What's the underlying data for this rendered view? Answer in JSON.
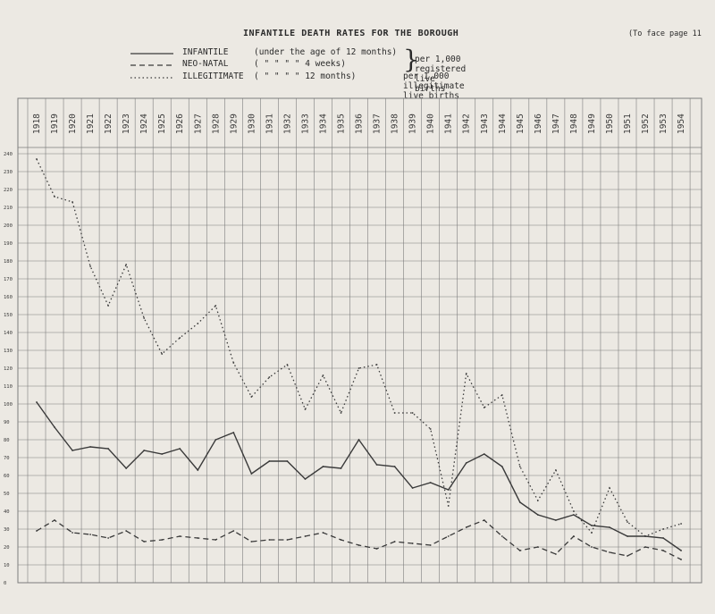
{
  "header": {
    "title": "INFANTILE DEATH RATES FOR THE BOROUGH",
    "face_page": "(To face page 11"
  },
  "legend": [
    {
      "name": "INFANTILE",
      "qualifier": "(under the age of 12 months)",
      "style": "solid"
    },
    {
      "name": "NEO-NATAL",
      "qualifier": "(   \"     \"   \"  \"   4 weeks)",
      "style": "dashed"
    },
    {
      "name": "ILLEGITIMATE",
      "qualifier": "(   \"     \"   \"  \"  12 months)",
      "style": "dotted"
    }
  ],
  "legend_notes": {
    "brace_text": "per 1,000 registered live births",
    "illegitimate_text": "per 1,000 illegitimate live births"
  },
  "colors": {
    "background": "#ece9e3",
    "grid": "#7d7d7d",
    "ink": "#3a3a3a"
  },
  "chart_data": {
    "type": "line",
    "title": "INFANTILE DEATH RATES FOR THE BOROUGH",
    "xlabel": "",
    "ylabel": "",
    "x": [
      1918,
      1919,
      1920,
      1921,
      1922,
      1923,
      1924,
      1925,
      1926,
      1927,
      1928,
      1929,
      1930,
      1931,
      1932,
      1933,
      1934,
      1935,
      1936,
      1937,
      1938,
      1939,
      1940,
      1941,
      1942,
      1943,
      1944,
      1945,
      1946,
      1947,
      1948,
      1949,
      1950,
      1951,
      1952,
      1953,
      1954
    ],
    "x_tick_labels": [
      "1918",
      "1919",
      "1920",
      "1921",
      "1922",
      "1923",
      "1924",
      "1925",
      "1926",
      "1927",
      "1928",
      "1929",
      "1930",
      "1931",
      "1932",
      "1933",
      "1934",
      "1935",
      "1936",
      "1937",
      "1938",
      "1939",
      "1940",
      "1941",
      "1942",
      "1943",
      "1944",
      "1945",
      "1946",
      "1947",
      "1948",
      "1949",
      "1950",
      "1951",
      "1952",
      "1953",
      "1954"
    ],
    "ylim": [
      0,
      240
    ],
    "y_ticks": [
      0,
      10,
      20,
      30,
      40,
      50,
      60,
      70,
      80,
      90,
      100,
      110,
      120,
      130,
      140,
      150,
      160,
      170,
      180,
      190,
      200,
      210,
      220,
      230,
      240
    ],
    "grid": true,
    "series": [
      {
        "name": "INFANTILE",
        "style": "solid",
        "values": [
          101,
          87,
          74,
          76,
          75,
          64,
          74,
          72,
          75,
          63,
          80,
          84,
          61,
          68,
          68,
          58,
          65,
          64,
          80,
          66,
          65,
          53,
          56,
          52,
          67,
          72,
          65,
          45,
          38,
          35,
          38,
          32,
          31,
          26,
          26,
          25,
          18
        ]
      },
      {
        "name": "NEO-NATAL",
        "style": "dashed",
        "values": [
          29,
          35,
          28,
          27,
          25,
          29,
          23,
          24,
          26,
          25,
          24,
          29,
          23,
          24,
          24,
          26,
          28,
          24,
          21,
          19,
          23,
          22,
          21,
          26,
          31,
          35,
          26,
          18,
          20,
          16,
          26,
          20,
          17,
          15,
          20,
          18,
          13
        ]
      },
      {
        "name": "ILLEGITIMATE",
        "style": "dotted",
        "values": [
          237,
          216,
          213,
          177,
          155,
          178,
          148,
          128,
          137,
          145,
          155,
          123,
          104,
          115,
          122,
          97,
          116,
          95,
          120,
          122,
          95,
          95,
          86,
          43,
          117,
          98,
          105,
          65,
          46,
          63,
          40,
          28,
          53,
          34,
          26,
          30,
          33
        ]
      }
    ]
  }
}
